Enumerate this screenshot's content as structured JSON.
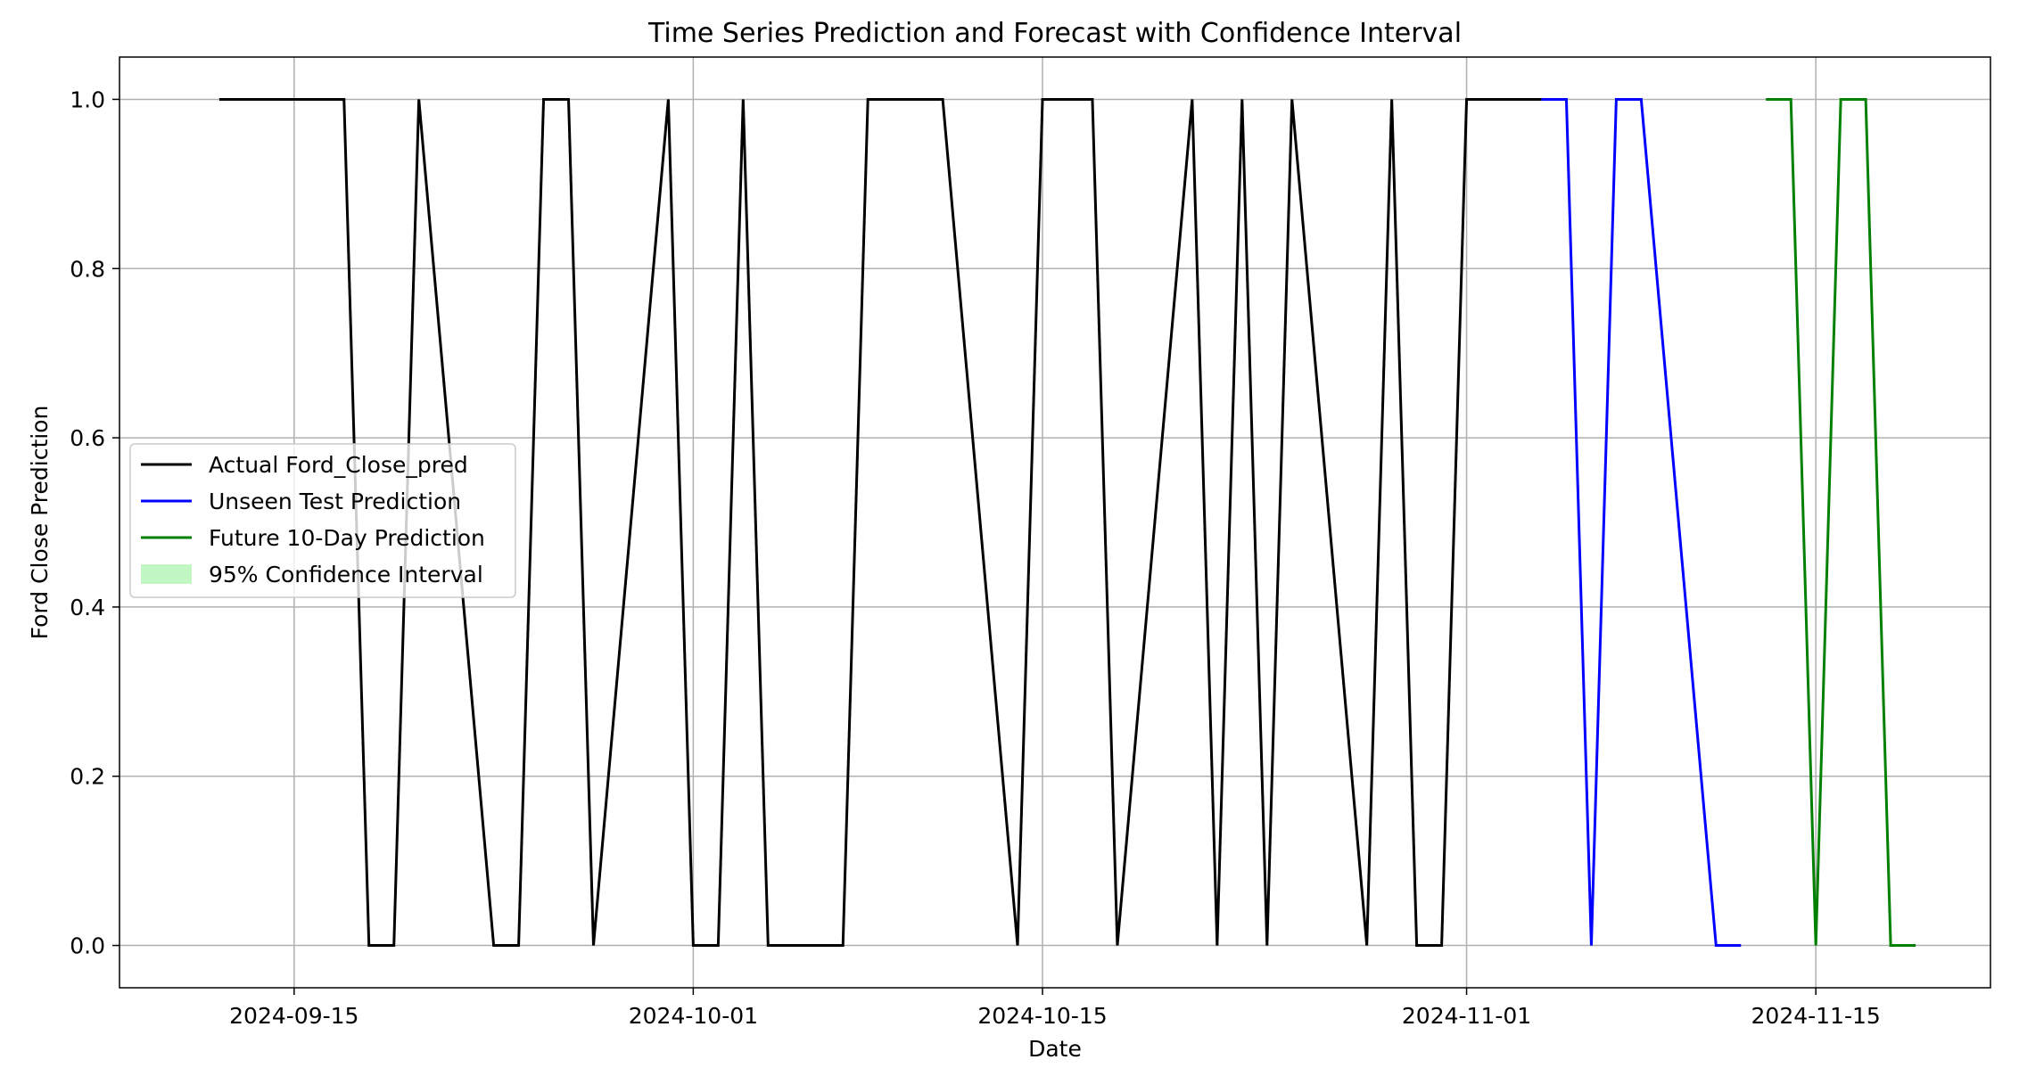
{
  "chart_data": {
    "type": "line",
    "title": "Time Series Prediction and Forecast with Confidence Interval",
    "xlabel": "Date",
    "ylabel": "Ford Close Prediction",
    "xlim": [
      "2024-09-08",
      "2024-11-22"
    ],
    "ylim": [
      -0.05,
      1.05
    ],
    "grid": true,
    "legend_position": "center-left",
    "x_ticks": [
      "2024-09-15",
      "2024-10-01",
      "2024-10-15",
      "2024-11-01",
      "2024-11-15"
    ],
    "y_ticks": [
      "0.0",
      "0.2",
      "0.4",
      "0.6",
      "0.8",
      "1.0"
    ],
    "series": [
      {
        "name": "Actual Ford_Close_pred",
        "color": "#000000",
        "points": [
          [
            "2024-09-12",
            1
          ],
          [
            "2024-09-13",
            1
          ],
          [
            "2024-09-16",
            1
          ],
          [
            "2024-09-17",
            1
          ],
          [
            "2024-09-18",
            0
          ],
          [
            "2024-09-19",
            0
          ],
          [
            "2024-09-20",
            1
          ],
          [
            "2024-09-23",
            0
          ],
          [
            "2024-09-24",
            0
          ],
          [
            "2024-09-25",
            1
          ],
          [
            "2024-09-26",
            1
          ],
          [
            "2024-09-27",
            0
          ],
          [
            "2024-09-30",
            1
          ],
          [
            "2024-10-01",
            0
          ],
          [
            "2024-10-02",
            0
          ],
          [
            "2024-10-03",
            1
          ],
          [
            "2024-10-04",
            0
          ],
          [
            "2024-10-07",
            0
          ],
          [
            "2024-10-08",
            1
          ],
          [
            "2024-10-09",
            1
          ],
          [
            "2024-10-10",
            1
          ],
          [
            "2024-10-11",
            1
          ],
          [
            "2024-10-14",
            0
          ],
          [
            "2024-10-15",
            1
          ],
          [
            "2024-10-16",
            1
          ],
          [
            "2024-10-17",
            1
          ],
          [
            "2024-10-18",
            0
          ],
          [
            "2024-10-21",
            1
          ],
          [
            "2024-10-22",
            0
          ],
          [
            "2024-10-23",
            1
          ],
          [
            "2024-10-24",
            0
          ],
          [
            "2024-10-25",
            1
          ],
          [
            "2024-10-28",
            0
          ],
          [
            "2024-10-29",
            1
          ],
          [
            "2024-10-30",
            0
          ],
          [
            "2024-10-31",
            0
          ],
          [
            "2024-11-01",
            1
          ],
          [
            "2024-11-04",
            1
          ]
        ]
      },
      {
        "name": "Unseen Test Prediction",
        "color": "#0000ff",
        "points": [
          [
            "2024-11-04",
            1
          ],
          [
            "2024-11-05",
            1
          ],
          [
            "2024-11-06",
            0
          ],
          [
            "2024-11-07",
            1
          ],
          [
            "2024-11-08",
            1
          ],
          [
            "2024-11-11",
            0
          ],
          [
            "2024-11-12",
            0
          ]
        ]
      },
      {
        "name": "Future 10-Day Prediction",
        "color": "#008000",
        "points": [
          [
            "2024-11-13",
            1
          ],
          [
            "2024-11-14",
            1
          ],
          [
            "2024-11-15",
            0
          ],
          [
            "2024-11-16",
            1
          ],
          [
            "2024-11-17",
            1
          ],
          [
            "2024-11-18",
            0
          ],
          [
            "2024-11-19",
            0
          ]
        ]
      },
      {
        "name": "95% Confidence Interval",
        "color": "#90ee90",
        "kind": "band",
        "points": []
      }
    ]
  }
}
